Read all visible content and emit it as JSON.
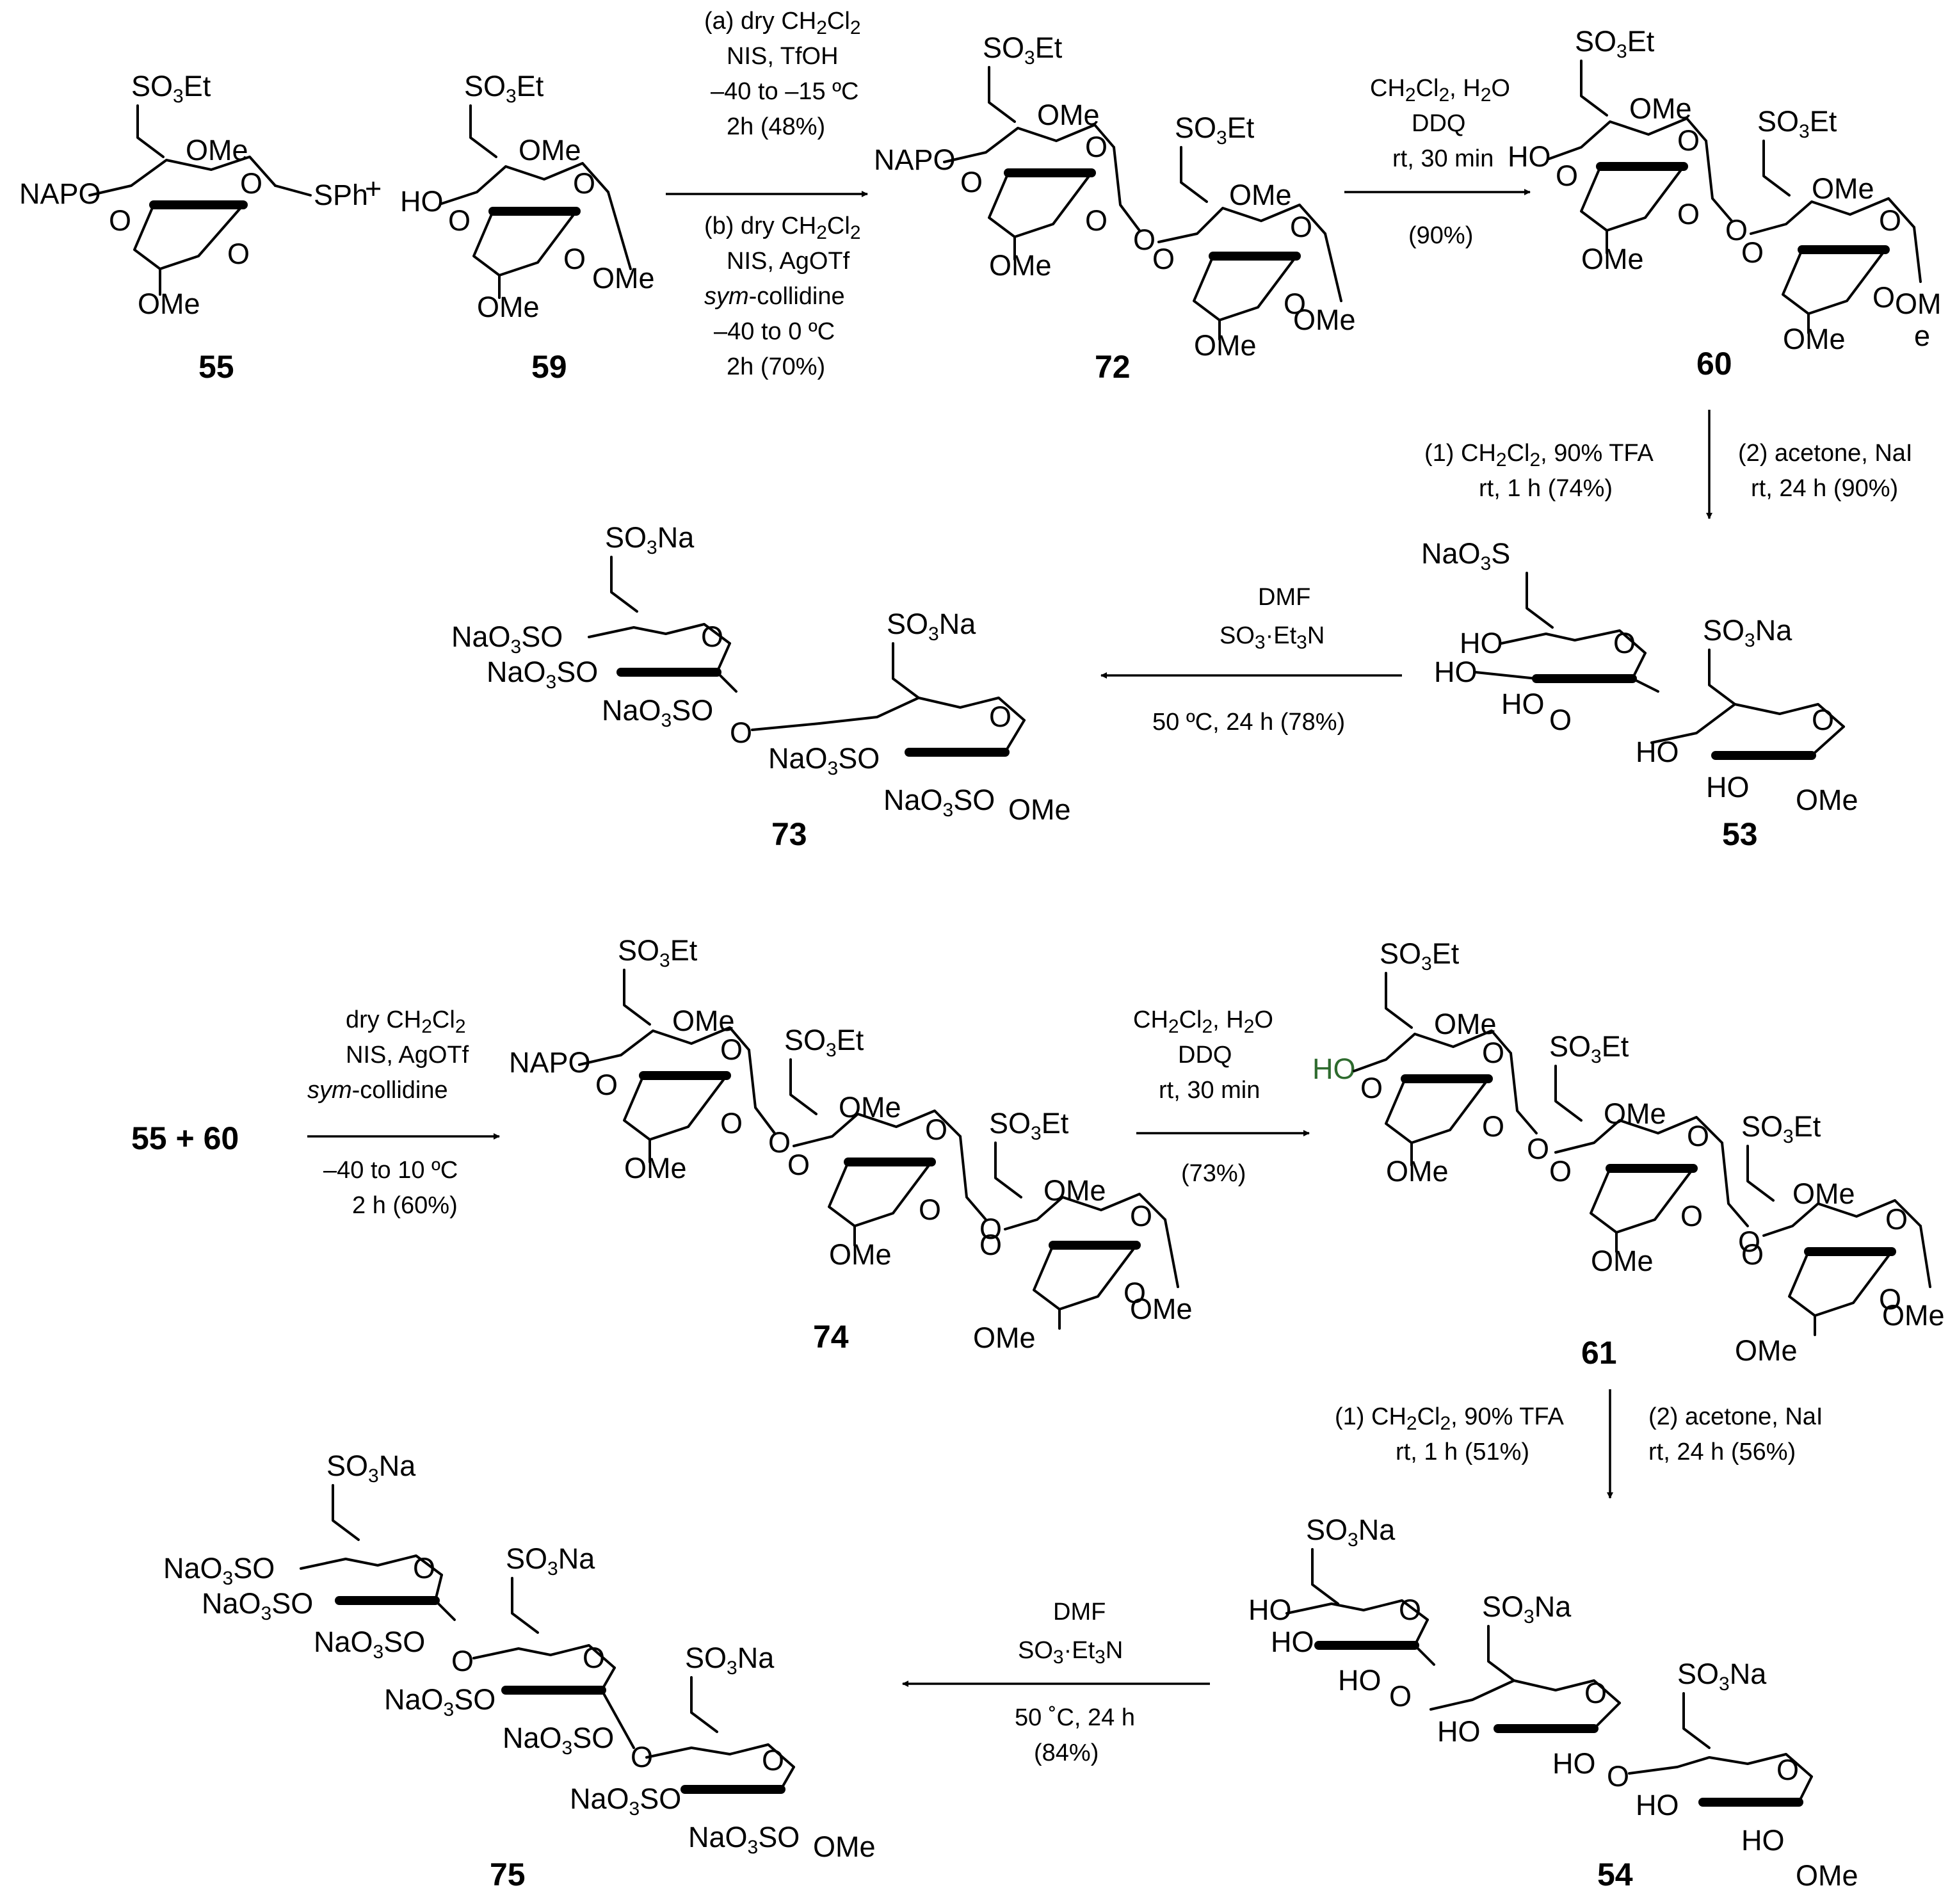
{
  "compounds": {
    "c55": "55",
    "c59": "59",
    "c72": "72",
    "c60": "60",
    "c53": "53",
    "c73": "73",
    "c74": "74",
    "c61": "61",
    "c54": "54",
    "c75": "75",
    "reactants": "55 + 60"
  },
  "groups": {
    "so3et": "SO3Et",
    "so3na": "SO3Na",
    "naso3s": "NaO3S",
    "naso3so": "NaO3SO",
    "ome": "OMe",
    "om": "OM",
    "e": "e",
    "sph": "SPh",
    "napo": "NAPO",
    "ho": "HO",
    "o": "O",
    "plus": "+"
  },
  "conditions": {
    "glyc1": {
      "a1": "(a) dry CH2Cl2",
      "a2": "NIS, TfOH",
      "a3": "–40 to –15 ºC",
      "a4": "2h (48%)",
      "b1": "(b) dry CH2Cl2",
      "b2": "NIS, AgOTf",
      "b3": "sym-collidine",
      "b4": "–40 to 0 ºC",
      "b5": "2h (70%)"
    },
    "ddq1": {
      "l1": "CH2Cl2, H2O",
      "l2": "DDQ",
      "l3": "rt, 30 min",
      "l4": "(90%)"
    },
    "deprot1": {
      "l1": "(1) CH2Cl2, 90% TFA",
      "l2": "rt, 1 h (74%)",
      "r1": "(2) acetone, NaI",
      "r2": "rt, 24 h (90%)"
    },
    "sulf1": {
      "l1": "DMF",
      "l2": "SO3·Et3N",
      "l3": "50 ºC, 24 h (78%)"
    },
    "glyc2": {
      "l1": "dry CH2Cl2",
      "l2": "NIS, AgOTf",
      "l3": "sym-collidine",
      "l4": "–40 to 10 ºC",
      "l5": "2 h (60%)"
    },
    "ddq2": {
      "l1": "CH2Cl2, H2O",
      "l2": "DDQ",
      "l3": "rt, 30 min",
      "l4": "(73%)"
    },
    "deprot2": {
      "l1": "(1) CH2Cl2, 90% TFA",
      "l2": "rt, 1 h (51%)",
      "r1": "(2) acetone, NaI",
      "r2": "rt, 24 h (56%)"
    },
    "sulf2": {
      "l1": "DMF",
      "l2": "SO3·Et3N",
      "l3": "50 ˚C, 24 h",
      "l4": "(84%)"
    }
  },
  "colors": {
    "highlight_ho": "#2e6b2e"
  }
}
